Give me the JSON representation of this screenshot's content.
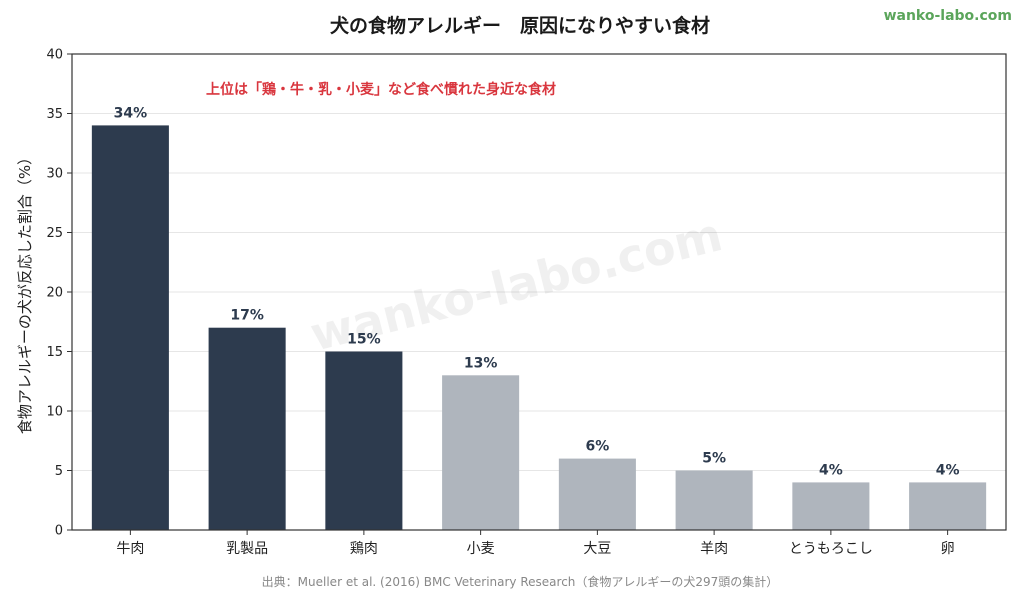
{
  "chart_data": {
    "type": "bar",
    "title": "犬の食物アレルギー　原因になりやすい食材",
    "brand": "wanko-labo.com",
    "watermark": "wanko-labo.com",
    "ylabel": "食物アレルギーの犬が反応した割合（%）",
    "xlabel": "",
    "ylim": [
      0,
      40
    ],
    "yticks": [
      0,
      5,
      10,
      15,
      20,
      25,
      30,
      35,
      40
    ],
    "grid": true,
    "categories": [
      "牛肉",
      "乳製品",
      "鶏肉",
      "小麦",
      "大豆",
      "羊肉",
      "とうもろこし",
      "卵"
    ],
    "values": [
      34,
      17,
      15,
      13,
      6,
      5,
      4,
      4
    ],
    "value_labels": [
      "34%",
      "17%",
      "15%",
      "13%",
      "6%",
      "5%",
      "4%",
      "4%"
    ],
    "highlight": [
      true,
      true,
      true,
      false,
      false,
      false,
      false,
      false
    ],
    "colors": {
      "highlight": "#2d3b4e",
      "normal": "#afb5bd",
      "label": "#2d3b4e",
      "annotation": "#d9363e"
    },
    "annotation": "上位は「鶏・牛・乳・小麦」など食べ慣れた身近な食材",
    "source": "出典：Mueller et al. (2016) BMC Veterinary Research（食物アレルギーの犬297頭の集計）"
  }
}
